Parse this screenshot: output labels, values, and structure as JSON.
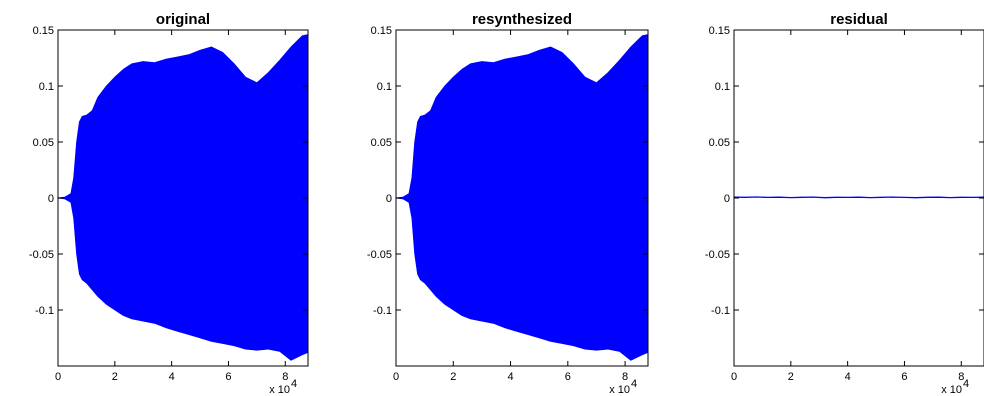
{
  "chart_data": [
    {
      "type": "line",
      "title": "original",
      "xlim": [
        0,
        88000
      ],
      "ylim": [
        -0.15,
        0.15
      ],
      "x_ticks": [
        0,
        20000,
        40000,
        60000,
        80000
      ],
      "x_tick_labels": [
        "0",
        "2",
        "4",
        "6",
        "8"
      ],
      "x_multiplier": "x 10",
      "x_multiplier_exponent": "4",
      "y_ticks": [
        -0.1,
        -0.05,
        0,
        0.05,
        0.1,
        0.15
      ],
      "y_tick_labels": [
        "-0.1",
        "-0.05",
        "0",
        "0.05",
        "0.1",
        "0.15"
      ],
      "color": "#0000ff",
      "envelope": {
        "x": [
          0,
          2500,
          4500,
          5500,
          6500,
          7500,
          8500,
          10000,
          12000,
          14000,
          17000,
          20000,
          23000,
          26000,
          30000,
          34000,
          38000,
          42000,
          46000,
          50000,
          54000,
          58000,
          62000,
          66000,
          70000,
          74000,
          78000,
          82000,
          86000,
          88000
        ],
        "upper": [
          0,
          0.001,
          0.004,
          0.018,
          0.05,
          0.068,
          0.073,
          0.074,
          0.078,
          0.09,
          0.1,
          0.108,
          0.115,
          0.12,
          0.122,
          0.121,
          0.124,
          0.126,
          0.128,
          0.132,
          0.135,
          0.13,
          0.12,
          0.108,
          0.103,
          0.112,
          0.123,
          0.135,
          0.145,
          0.146
        ],
        "lower": [
          0,
          -0.001,
          -0.004,
          -0.018,
          -0.05,
          -0.068,
          -0.073,
          -0.076,
          -0.082,
          -0.088,
          -0.095,
          -0.1,
          -0.105,
          -0.108,
          -0.11,
          -0.112,
          -0.116,
          -0.119,
          -0.122,
          -0.125,
          -0.128,
          -0.13,
          -0.132,
          -0.135,
          -0.136,
          -0.135,
          -0.137,
          -0.145,
          -0.14,
          -0.138
        ]
      }
    },
    {
      "type": "line",
      "title": "resynthesized",
      "xlim": [
        0,
        88000
      ],
      "ylim": [
        -0.15,
        0.15
      ],
      "x_ticks": [
        0,
        20000,
        40000,
        60000,
        80000
      ],
      "x_tick_labels": [
        "0",
        "2",
        "4",
        "6",
        "8"
      ],
      "x_multiplier": "x 10",
      "x_multiplier_exponent": "4",
      "y_ticks": [
        -0.1,
        -0.05,
        0,
        0.05,
        0.1,
        0.15
      ],
      "y_tick_labels": [
        "-0.1",
        "-0.05",
        "0",
        "0.05",
        "0.1",
        "0.15"
      ],
      "color": "#0000ff",
      "envelope": {
        "x": [
          0,
          2500,
          4500,
          5500,
          6500,
          7500,
          8500,
          10000,
          12000,
          14000,
          17000,
          20000,
          23000,
          26000,
          30000,
          34000,
          38000,
          42000,
          46000,
          50000,
          54000,
          58000,
          62000,
          66000,
          70000,
          74000,
          78000,
          82000,
          86000,
          88000
        ],
        "upper": [
          0,
          0.001,
          0.004,
          0.018,
          0.05,
          0.068,
          0.073,
          0.074,
          0.078,
          0.09,
          0.1,
          0.108,
          0.115,
          0.12,
          0.122,
          0.121,
          0.124,
          0.126,
          0.128,
          0.132,
          0.135,
          0.13,
          0.12,
          0.108,
          0.103,
          0.112,
          0.123,
          0.135,
          0.145,
          0.146
        ],
        "lower": [
          0,
          -0.001,
          -0.004,
          -0.018,
          -0.05,
          -0.068,
          -0.073,
          -0.076,
          -0.082,
          -0.088,
          -0.095,
          -0.1,
          -0.105,
          -0.108,
          -0.11,
          -0.112,
          -0.116,
          -0.119,
          -0.122,
          -0.125,
          -0.128,
          -0.13,
          -0.132,
          -0.135,
          -0.136,
          -0.135,
          -0.137,
          -0.145,
          -0.14,
          -0.138
        ]
      }
    },
    {
      "type": "line",
      "title": "residual",
      "xlim": [
        0,
        88000
      ],
      "ylim": [
        -0.15,
        0.15
      ],
      "x_ticks": [
        0,
        20000,
        40000,
        60000,
        80000
      ],
      "x_tick_labels": [
        "0",
        "2",
        "4",
        "6",
        "8"
      ],
      "x_multiplier": "x 10",
      "x_multiplier_exponent": "4",
      "y_ticks": [
        -0.1,
        -0.05,
        0,
        0.05,
        0.1,
        0.15
      ],
      "y_tick_labels": [
        "-0.1",
        "-0.05",
        "0",
        "0.05",
        "0.1",
        "0.15"
      ],
      "color": "#0000ff",
      "series": {
        "x": [
          0,
          4000,
          8000,
          12000,
          16000,
          20000,
          24000,
          28000,
          32000,
          36000,
          40000,
          44000,
          48000,
          52000,
          56000,
          60000,
          64000,
          68000,
          72000,
          76000,
          80000,
          84000,
          88000
        ],
        "y": [
          0.0008,
          0.0006,
          0.0009,
          0.0005,
          0.0007,
          0.0004,
          0.0006,
          0.0008,
          0.0003,
          0.0006,
          0.0005,
          0.0007,
          0.0004,
          0.0006,
          0.0008,
          0.0005,
          0.0003,
          0.0006,
          0.0007,
          0.0004,
          0.0006,
          0.0005,
          0.0007
        ]
      }
    }
  ]
}
